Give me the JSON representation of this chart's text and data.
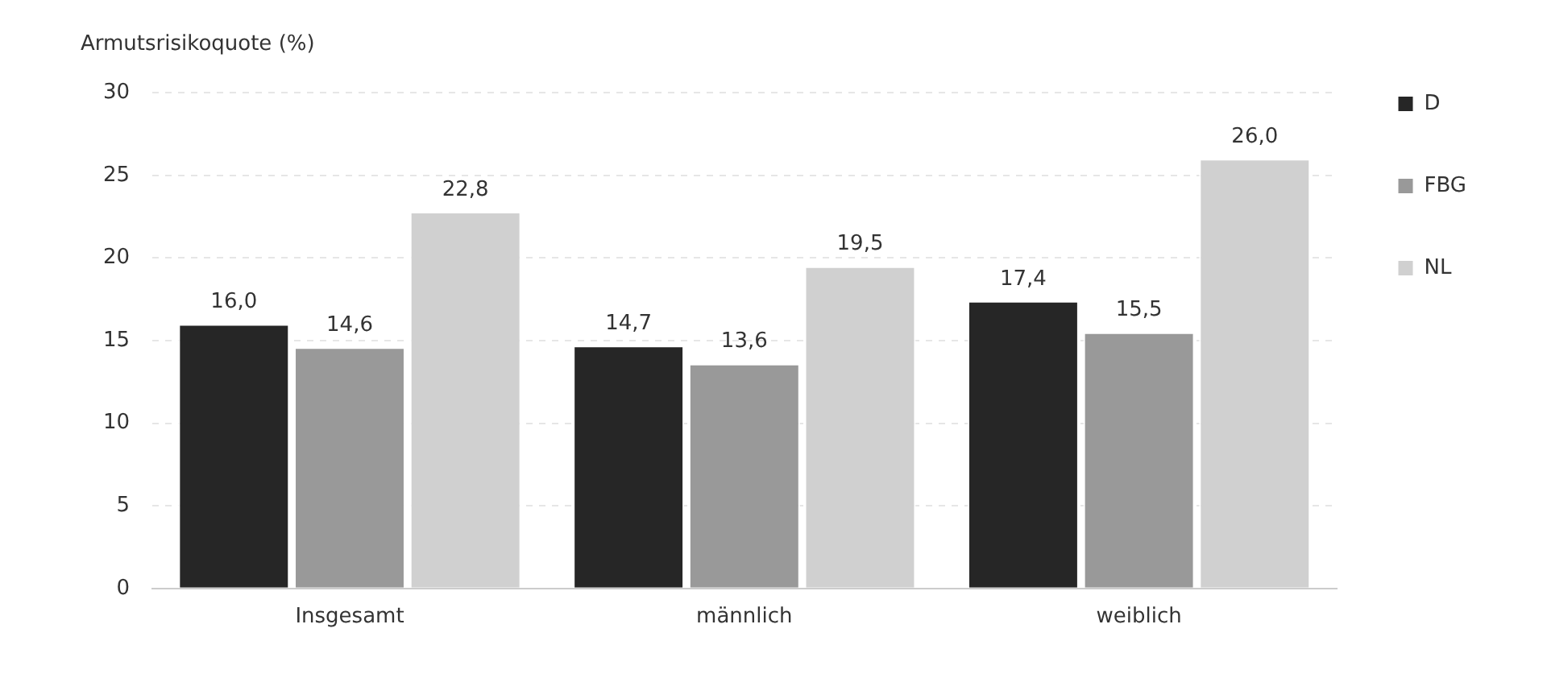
{
  "chart_data": {
    "type": "bar",
    "ylabel": "Armutsrisikoquote (%)",
    "categories": [
      "Insgesamt",
      "männlich",
      "weiblich"
    ],
    "series": [
      {
        "name": "D",
        "color": "#262626",
        "values": [
          16.0,
          14.7,
          17.4
        ],
        "value_labels": [
          "16,0",
          "14,7",
          "17,4"
        ]
      },
      {
        "name": "FBG",
        "color": "#999999",
        "values": [
          14.6,
          13.6,
          15.5
        ],
        "value_labels": [
          "14,6",
          "13,6",
          "15,5"
        ]
      },
      {
        "name": "NL",
        "color": "#d0d0d0",
        "values": [
          22.8,
          19.5,
          26.0
        ],
        "value_labels": [
          "22,8",
          "19,5",
          "26,0"
        ]
      }
    ],
    "ylim": [
      0,
      30
    ],
    "yticks": [
      0,
      5,
      10,
      15,
      20,
      25,
      30
    ],
    "grid": "y",
    "legend": "right"
  }
}
